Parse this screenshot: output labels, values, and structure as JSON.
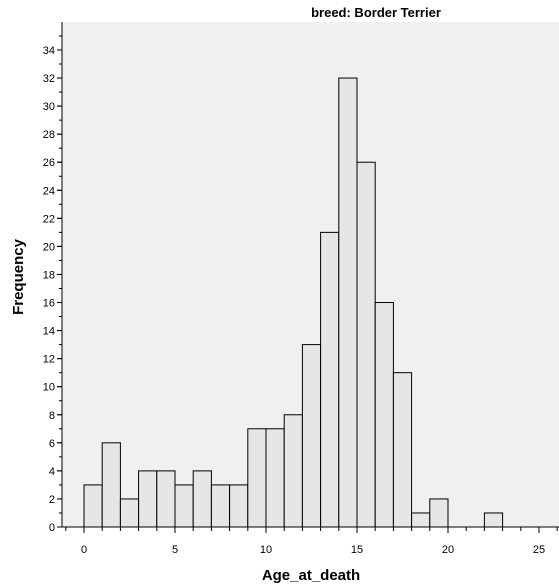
{
  "chart_data": {
    "type": "bar",
    "title": "breed: Border Terrier",
    "xlabel": "Age_at_death",
    "ylabel": "Frequency",
    "bin_width": 1,
    "bins": [
      {
        "x0": 0,
        "x1": 1,
        "count": 3
      },
      {
        "x0": 1,
        "x1": 2,
        "count": 6
      },
      {
        "x0": 2,
        "x1": 3,
        "count": 2
      },
      {
        "x0": 3,
        "x1": 4,
        "count": 4
      },
      {
        "x0": 4,
        "x1": 5,
        "count": 4
      },
      {
        "x0": 5,
        "x1": 6,
        "count": 3
      },
      {
        "x0": 6,
        "x1": 7,
        "count": 4
      },
      {
        "x0": 7,
        "x1": 8,
        "count": 3
      },
      {
        "x0": 8,
        "x1": 9,
        "count": 3
      },
      {
        "x0": 9,
        "x1": 10,
        "count": 7
      },
      {
        "x0": 10,
        "x1": 11,
        "count": 7
      },
      {
        "x0": 11,
        "x1": 12,
        "count": 8
      },
      {
        "x0": 12,
        "x1": 13,
        "count": 13
      },
      {
        "x0": 13,
        "x1": 14,
        "count": 21
      },
      {
        "x0": 14,
        "x1": 15,
        "count": 32
      },
      {
        "x0": 15,
        "x1": 16,
        "count": 26
      },
      {
        "x0": 16,
        "x1": 17,
        "count": 16
      },
      {
        "x0": 17,
        "x1": 18,
        "count": 11
      },
      {
        "x0": 18,
        "x1": 19,
        "count": 1
      },
      {
        "x0": 19,
        "x1": 20,
        "count": 2
      },
      {
        "x0": 22,
        "x1": 23,
        "count": 1
      }
    ],
    "xlim": [
      -1.2,
      26.4
    ],
    "ylim": [
      0,
      36
    ],
    "xticks": [
      0,
      5,
      10,
      15,
      20,
      25
    ],
    "yticks": [
      0,
      2,
      4,
      6,
      8,
      10,
      12,
      14,
      16,
      18,
      20,
      22,
      24,
      26,
      28,
      30,
      32,
      34
    ],
    "grid": false,
    "colors": {
      "bar_fill": "#e6e6e6",
      "bar_stroke": "#000000",
      "plot_bg": "#f0f0f0",
      "axis": "#000000"
    }
  }
}
